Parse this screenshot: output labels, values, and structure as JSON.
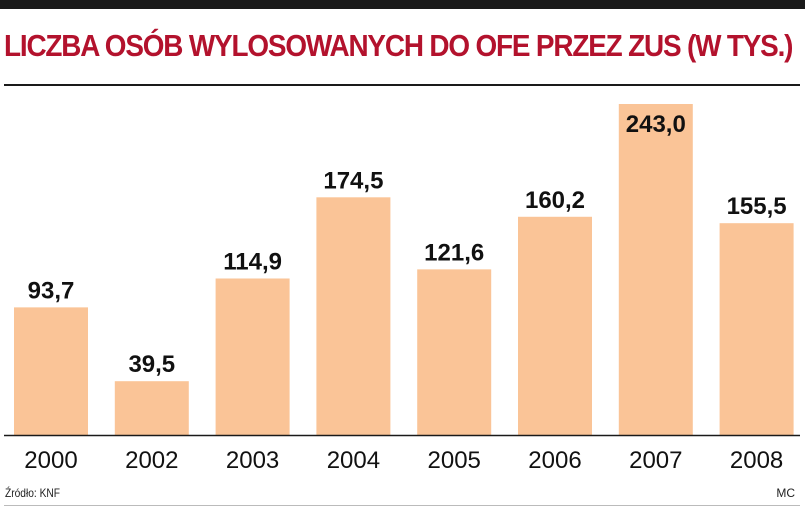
{
  "header": {
    "title": "LICZBA OSÓB WYLOSOWANYCH DO OFE PRZEZ ZUS (W TYS.)"
  },
  "footer": {
    "source": "Źródło: KNF",
    "credit": "MC"
  },
  "colors": {
    "title": "#b3122d",
    "bar": "#fac497",
    "text": "#111111",
    "axis": "#1a1a1a"
  },
  "chart_data": {
    "type": "bar",
    "title": "LICZBA OSÓB WYLOSOWANYCH DO OFE PRZEZ ZUS (W TYS.)",
    "categories": [
      "2000",
      "2002",
      "2003",
      "2004",
      "2005",
      "2006",
      "2007",
      "2008"
    ],
    "values": [
      93.7,
      39.5,
      114.9,
      174.5,
      121.6,
      160.2,
      243.0,
      155.5
    ],
    "value_labels": [
      "93,7",
      "39,5",
      "114,9",
      "174,5",
      "121,6",
      "160,2",
      "243,0",
      "155,5"
    ],
    "xlabel": "",
    "ylabel": "",
    "ylim": [
      0,
      243
    ],
    "grid": false,
    "legend": "none"
  }
}
